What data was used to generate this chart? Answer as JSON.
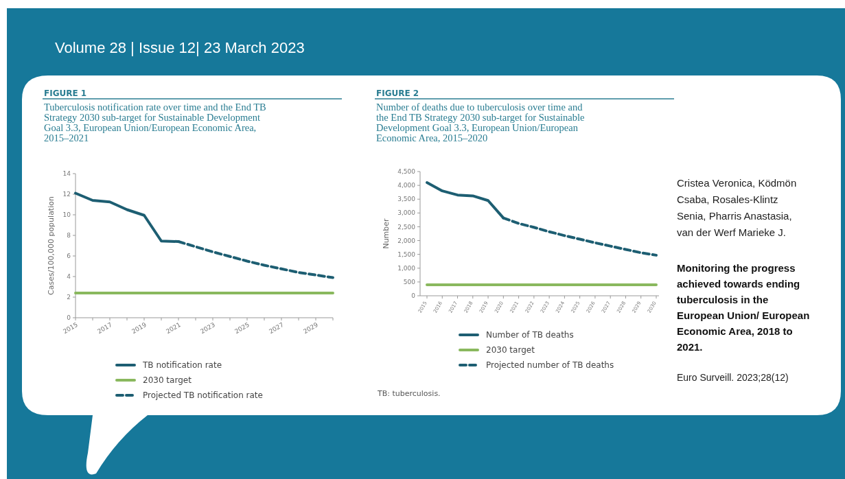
{
  "chart_data": [
    {
      "type": "line",
      "title": "Tuberculosis notification rate over time and the End TB Strategy 2030 sub-target for Sustainable Development Goal 3.3, European Union/European Economic Area, 2015–2021",
      "ylabel": "Cases/100,000 population",
      "xlim": [
        2015,
        2030
      ],
      "xticks": [
        2015,
        {
          "value": 2016,
          "label": null
        },
        2017,
        {
          "value": 2018,
          "label": null
        },
        2019,
        {
          "value": 2020,
          "label": null
        },
        2021,
        {
          "value": 2022,
          "label": null
        },
        2023,
        {
          "value": 2024,
          "label": null
        },
        2025,
        {
          "value": 2026,
          "label": null
        },
        2027,
        {
          "value": 2028,
          "label": null
        },
        2029,
        {
          "value": 2030,
          "label": null
        }
      ],
      "ylim": [
        0,
        14
      ],
      "yticks": [
        0,
        2,
        4,
        6,
        8,
        10,
        12,
        14
      ],
      "legend": "bottom",
      "annotations": [
        "FIGURE 1"
      ],
      "series": [
        {
          "name": "TB notification rate",
          "color": "#1d5e72",
          "x": [
            2015,
            2016,
            2017,
            2018,
            2019,
            2020,
            2021
          ],
          "values": [
            12.1,
            11.4,
            11.25,
            10.5,
            9.95,
            7.45,
            7.4
          ]
        },
        {
          "name": "2030 target",
          "color": "#8ab85e",
          "x": [
            2015,
            2030
          ],
          "values": [
            2.4,
            2.4
          ]
        },
        {
          "name": "Projected TB notification rate",
          "color": "#1d5e72",
          "line_style": "dashed",
          "x": [
            2021,
            2022,
            2023,
            2024,
            2025,
            2026,
            2027,
            2028,
            2029,
            2030
          ],
          "values": [
            7.4,
            6.9,
            6.4,
            5.95,
            5.5,
            5.1,
            4.75,
            4.4,
            4.15,
            3.9
          ]
        }
      ]
    },
    {
      "type": "line",
      "title": "Number of deaths due to tuberculosis over time and the End TB Strategy 2030 sub-target for Sustainable Development Goal 3.3, European Union/European Economic Area, 2015–2020",
      "ylabel": "Number",
      "categories": [
        "2015",
        "2016",
        "2017",
        "2018",
        "2019",
        "2020",
        "2021",
        "2022",
        "2023",
        "2024",
        "2025",
        "2026",
        "2027",
        "2028",
        "2029",
        "2030"
      ],
      "ylim": [
        0,
        4500
      ],
      "yticks": [
        0,
        500,
        {
          "value": 1000,
          "label": "1,000"
        },
        {
          "value": 1500,
          "label": "1,500"
        },
        {
          "value": 2000,
          "label": "2,000"
        },
        {
          "value": 2500,
          "label": "2,500"
        },
        {
          "value": 3000,
          "label": "3,000"
        },
        {
          "value": 3500,
          "label": "3,500"
        },
        {
          "value": 4000,
          "label": "4,000"
        },
        {
          "value": 4500,
          "label": "4,500"
        }
      ],
      "legend": "bottom",
      "annotations": [
        "FIGURE 2",
        "TB: tuberculosis."
      ],
      "series": [
        {
          "name": "Number of TB deaths",
          "color": "#1d5e72",
          "values": [
            4100,
            3800,
            3650,
            3620,
            3450,
            2820,
            null,
            null,
            null,
            null,
            null,
            null,
            null,
            null,
            null,
            null
          ]
        },
        {
          "name": "2030 target",
          "color": "#8ab85e",
          "values": [
            400,
            400,
            400,
            400,
            400,
            400,
            400,
            400,
            400,
            400,
            400,
            400,
            400,
            400,
            400,
            400
          ]
        },
        {
          "name": "Projected number of TB deaths",
          "color": "#1d5e72",
          "line_style": "dashed",
          "values": [
            null,
            null,
            null,
            null,
            null,
            2820,
            2620,
            2480,
            2320,
            2180,
            2050,
            1920,
            1800,
            1680,
            1560,
            1470
          ]
        }
      ]
    },
    {
      "type": "other",
      "title": "Monitoring the progress achieved towards ending tuberculosis in the European Union/ European Economic Area, 2018 to 2021.",
      "subtitle": "Cristea Veronica, Ködmön Csaba, Rosales-Klintz Senia, Pharris Anastasia, van der Werf Marieke J.",
      "annotations": [
        "Volume 28 | Issue 12| 23 March 2023",
        "Euro Surveill. 2023;28(12)"
      ]
    }
  ]
}
